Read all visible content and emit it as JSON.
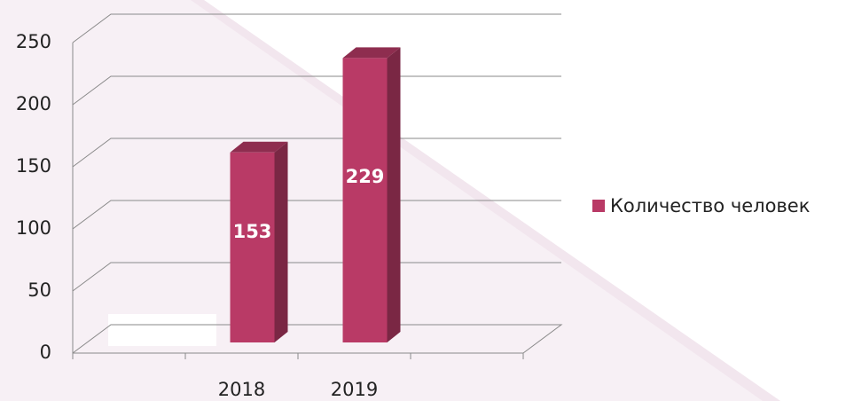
{
  "chart_data": {
    "type": "bar",
    "categories": [
      null,
      "2018",
      "2019",
      null
    ],
    "series": [
      {
        "name": "Количество человек",
        "color": "#b93a66",
        "values": [
          null,
          153,
          229,
          null
        ]
      }
    ],
    "ylim": [
      0,
      250
    ],
    "yticks": [
      0,
      50,
      100,
      150,
      200,
      250
    ],
    "grid": true,
    "legend": "right"
  }
}
